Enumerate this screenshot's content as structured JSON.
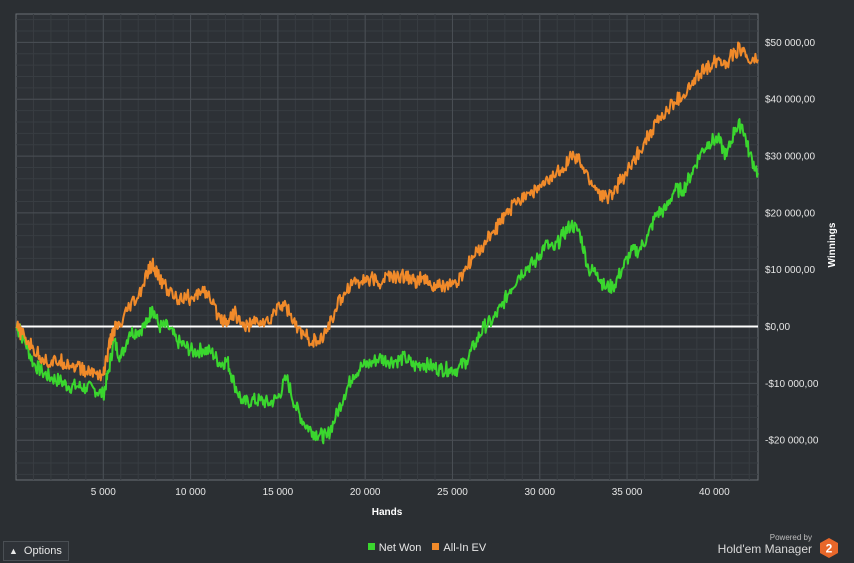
{
  "chart_data": {
    "type": "line",
    "xlabel": "Hands",
    "ylabel": "Winnings",
    "xlim": [
      0,
      42500
    ],
    "ylim": [
      -27000,
      55000
    ],
    "x_ticks": [
      5000,
      10000,
      15000,
      20000,
      25000,
      30000,
      35000,
      40000
    ],
    "x_tick_labels": [
      "5 000",
      "10 000",
      "15 000",
      "20 000",
      "25 000",
      "30 000",
      "35 000",
      "40 000"
    ],
    "y_ticks": [
      -20000,
      -10000,
      0,
      10000,
      20000,
      30000,
      40000,
      50000
    ],
    "y_tick_labels": [
      "-$20 000,00",
      "-$10 000,00",
      "$0,00",
      "$10 000,00",
      "$20 000,00",
      "$30 000,00",
      "$40 000,00",
      "$50 000,00"
    ],
    "grid": true,
    "legend_position": "bottom-center",
    "series": [
      {
        "name": "Net Won",
        "color": "#3ad62e",
        "x": [
          0,
          500,
          1000,
          1500,
          2000,
          2500,
          3000,
          3500,
          4000,
          4500,
          5000,
          5300,
          5600,
          6000,
          6500,
          7000,
          7500,
          7800,
          8200,
          8700,
          9200,
          9700,
          10200,
          10700,
          11200,
          11700,
          12100,
          12500,
          13000,
          13500,
          14000,
          14500,
          15000,
          15500,
          16000,
          16500,
          17000,
          17400,
          17800,
          18300,
          18800,
          19300,
          19800,
          20300,
          20800,
          21300,
          21800,
          22300,
          22800,
          23300,
          23800,
          24300,
          24800,
          25300,
          25800,
          26300,
          26800,
          27300,
          27800,
          28300,
          28800,
          29300,
          29800,
          30300,
          30800,
          31300,
          31800,
          32300,
          32800,
          33300,
          33700,
          34200,
          34700,
          35200,
          35700,
          36200,
          36700,
          37200,
          37700,
          38200,
          38700,
          39200,
          39700,
          40200,
          40700,
          41200,
          41600,
          42000,
          42500
        ],
        "y": [
          0,
          -2500,
          -6500,
          -8000,
          -9000,
          -9500,
          -10500,
          -10500,
          -10800,
          -11000,
          -12000,
          -8000,
          -2500,
          -5500,
          -1000,
          -800,
          500,
          3500,
          0,
          0,
          -2500,
          -3500,
          -4500,
          -4000,
          -4500,
          -6500,
          -6000,
          -10000,
          -13500,
          -13000,
          -13000,
          -13500,
          -12500,
          -9000,
          -14000,
          -17000,
          -18500,
          -19000,
          -19500,
          -16000,
          -12000,
          -8500,
          -7000,
          -6500,
          -5500,
          -6000,
          -6000,
          -5500,
          -7000,
          -6500,
          -7000,
          -7500,
          -7500,
          -7500,
          -6000,
          -3000,
          0,
          1000,
          3500,
          6500,
          9000,
          10500,
          11500,
          14500,
          13500,
          16000,
          18000,
          16500,
          10000,
          9500,
          7000,
          7000,
          10000,
          13000,
          13500,
          16000,
          20000,
          20500,
          24000,
          24000,
          27000,
          30500,
          32500,
          33000,
          30000,
          35000,
          35500,
          30500,
          27000
        ]
      },
      {
        "name": "All-In EV",
        "color": "#f08a2a",
        "x": [
          0,
          500,
          1000,
          1500,
          2000,
          2500,
          3000,
          3500,
          4000,
          4500,
          5000,
          5300,
          5600,
          6000,
          6500,
          7000,
          7500,
          7800,
          8200,
          8700,
          9200,
          9700,
          10200,
          10700,
          11200,
          11700,
          12100,
          12500,
          13000,
          13500,
          14000,
          14500,
          15000,
          15500,
          16000,
          16500,
          17000,
          17400,
          17800,
          18300,
          18800,
          19300,
          19800,
          20300,
          20800,
          21300,
          21800,
          22300,
          22800,
          23300,
          23800,
          24300,
          24800,
          25300,
          25800,
          26300,
          26800,
          27300,
          27800,
          28300,
          28800,
          29300,
          29800,
          30300,
          30800,
          31300,
          31800,
          32300,
          32800,
          33300,
          33700,
          34200,
          34700,
          35200,
          35700,
          36200,
          36700,
          37200,
          37700,
          38200,
          38700,
          39200,
          39700,
          40200,
          40700,
          41200,
          41600,
          42000,
          42500
        ],
        "y": [
          0,
          -2000,
          -4000,
          -5500,
          -6500,
          -6000,
          -6500,
          -7000,
          -8000,
          -8000,
          -8500,
          -4000,
          -500,
          0,
          3500,
          5000,
          9000,
          11000,
          8500,
          6500,
          5000,
          5500,
          4500,
          7000,
          4000,
          1500,
          1000,
          2500,
          0,
          500,
          1000,
          500,
          4000,
          3500,
          0,
          -1500,
          -2500,
          -3000,
          -500,
          3000,
          6000,
          8000,
          8000,
          8500,
          7500,
          9000,
          8500,
          9000,
          8000,
          8500,
          7000,
          7000,
          7500,
          7500,
          10500,
          12500,
          14500,
          16500,
          18500,
          20500,
          22500,
          23500,
          24000,
          25000,
          26500,
          28000,
          30000,
          29000,
          26000,
          24000,
          22500,
          23500,
          26000,
          28000,
          31000,
          33500,
          36000,
          37500,
          39500,
          40500,
          42500,
          44500,
          46000,
          47000,
          46500,
          48500,
          49000,
          46500,
          47000
        ]
      }
    ]
  },
  "legend": {
    "items": [
      {
        "label": "Net Won",
        "color": "#3ad62e"
      },
      {
        "label": "All-In EV",
        "color": "#f08a2a"
      }
    ]
  },
  "options": {
    "label": "Options",
    "chevron_icon": "chevron-up-icon"
  },
  "branding": {
    "powered_by": "Powered by",
    "product": "Hold'em Manager",
    "logo_text": "2",
    "logo_color": "#e8672a"
  }
}
